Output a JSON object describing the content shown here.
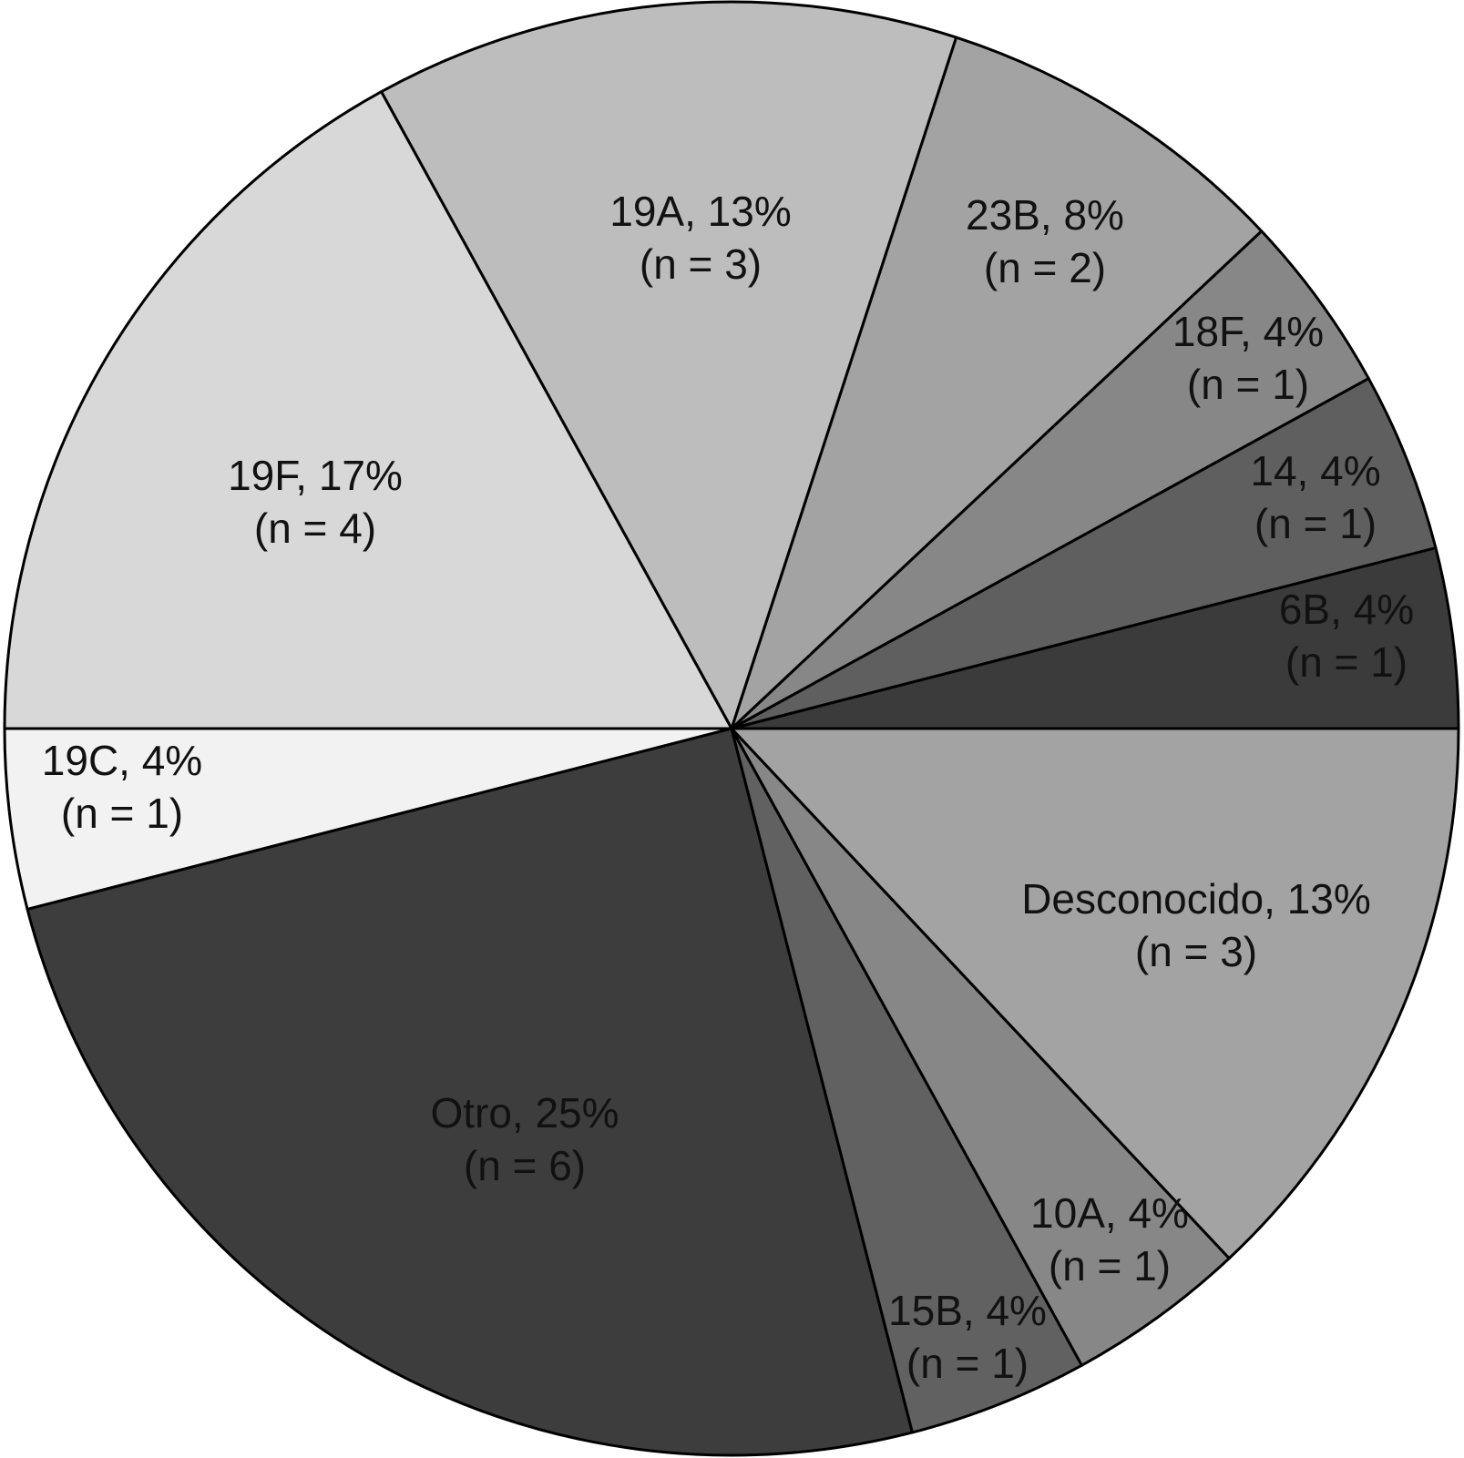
{
  "chart_data": {
    "type": "pie",
    "title": "",
    "start_angle_deg": 0,
    "direction": "counterclockwise",
    "slices": [
      {
        "name": "6B",
        "percent": 4,
        "n": 1,
        "label": "6B, 4%",
        "count_label": "(n = 1)",
        "color": "#3b3b3b"
      },
      {
        "name": "14",
        "percent": 4,
        "n": 1,
        "label": "14, 4%",
        "count_label": "(n = 1)",
        "color": "#5f5f5f"
      },
      {
        "name": "18F",
        "percent": 4,
        "n": 1,
        "label": "18F, 4%",
        "count_label": "(n = 1)",
        "color": "#878787"
      },
      {
        "name": "23B",
        "percent": 8,
        "n": 2,
        "label": "23B, 8%",
        "count_label": "(n = 2)",
        "color": "#a3a3a3"
      },
      {
        "name": "19A",
        "percent": 13,
        "n": 3,
        "label": "19A, 13%",
        "count_label": "(n = 3)",
        "color": "#bdbdbd"
      },
      {
        "name": "19F",
        "percent": 17,
        "n": 4,
        "label": "19F, 17%",
        "count_label": "(n = 4)",
        "color": "#d8d8d8"
      },
      {
        "name": "19C",
        "percent": 4,
        "n": 1,
        "label": "19C, 4%",
        "count_label": "(n = 1)",
        "color": "#f2f2f2"
      },
      {
        "name": "Otro",
        "percent": 25,
        "n": 6,
        "label": "Otro, 25%",
        "count_label": "(n = 6)",
        "color": "#3d3d3d"
      },
      {
        "name": "15B",
        "percent": 4,
        "n": 1,
        "label": "15B, 4%",
        "count_label": "(n = 1)",
        "color": "#616161"
      },
      {
        "name": "10A",
        "percent": 4,
        "n": 1,
        "label": "10A, 4%",
        "count_label": "(n = 1)",
        "color": "#878787"
      },
      {
        "name": "Desconocido",
        "percent": 13,
        "n": 3,
        "label": "Desconocido, 13%",
        "count_label": "(n = 3)",
        "color": "#a3a3a3"
      }
    ]
  }
}
